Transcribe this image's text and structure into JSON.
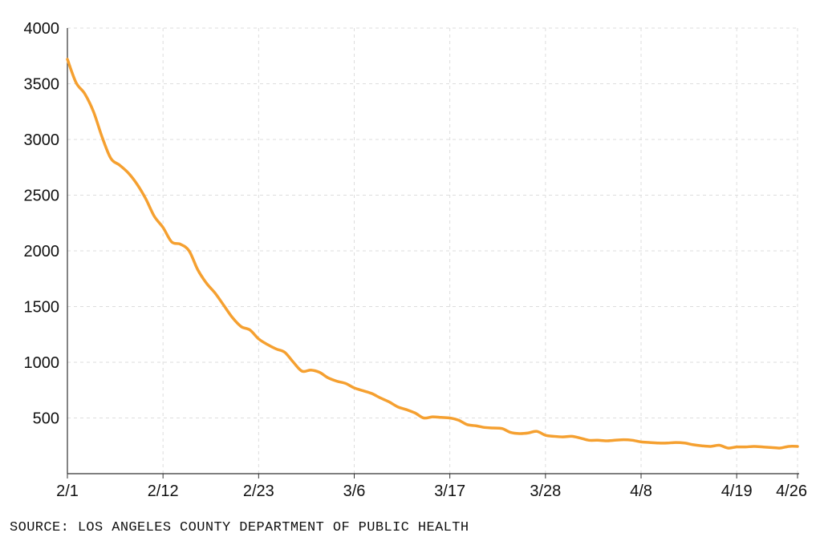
{
  "chart_data": {
    "type": "line",
    "title": "",
    "xlabel": "",
    "ylabel": "",
    "xlim": [
      0,
      84
    ],
    "ylim": [
      0,
      4000
    ],
    "y_ticks": [
      500,
      1000,
      1500,
      2000,
      2500,
      3000,
      3500,
      4000
    ],
    "x_ticks": [
      {
        "label": "2/1",
        "x": 0
      },
      {
        "label": "2/12",
        "x": 11
      },
      {
        "label": "2/23",
        "x": 22
      },
      {
        "label": "3/6",
        "x": 33
      },
      {
        "label": "3/17",
        "x": 44
      },
      {
        "label": "3/28",
        "x": 55
      },
      {
        "label": "4/8",
        "x": 66
      },
      {
        "label": "4/19",
        "x": 77
      },
      {
        "label": "4/26",
        "x": 84
      }
    ],
    "grid": true,
    "series": [
      {
        "color": "#f5a030",
        "points": [
          [
            0,
            3720
          ],
          [
            1,
            3510
          ],
          [
            2,
            3410
          ],
          [
            3,
            3250
          ],
          [
            4,
            3020
          ],
          [
            5,
            2830
          ],
          [
            6,
            2770
          ],
          [
            7,
            2700
          ],
          [
            8,
            2600
          ],
          [
            9,
            2470
          ],
          [
            10,
            2310
          ],
          [
            11,
            2210
          ],
          [
            12,
            2080
          ],
          [
            13,
            2060
          ],
          [
            14,
            2000
          ],
          [
            15,
            1830
          ],
          [
            16,
            1710
          ],
          [
            17,
            1620
          ],
          [
            18,
            1510
          ],
          [
            19,
            1400
          ],
          [
            20,
            1320
          ],
          [
            21,
            1290
          ],
          [
            22,
            1210
          ],
          [
            23,
            1160
          ],
          [
            24,
            1120
          ],
          [
            25,
            1090
          ],
          [
            26,
            1000
          ],
          [
            27,
            920
          ],
          [
            28,
            930
          ],
          [
            29,
            910
          ],
          [
            30,
            860
          ],
          [
            31,
            830
          ],
          [
            32,
            810
          ],
          [
            33,
            770
          ],
          [
            34,
            745
          ],
          [
            35,
            720
          ],
          [
            36,
            680
          ],
          [
            37,
            645
          ],
          [
            38,
            600
          ],
          [
            39,
            575
          ],
          [
            40,
            545
          ],
          [
            41,
            500
          ],
          [
            42,
            510
          ],
          [
            43,
            505
          ],
          [
            44,
            500
          ],
          [
            45,
            480
          ],
          [
            46,
            440
          ],
          [
            47,
            430
          ],
          [
            48,
            415
          ],
          [
            49,
            410
          ],
          [
            50,
            405
          ],
          [
            51,
            370
          ],
          [
            52,
            360
          ],
          [
            53,
            365
          ],
          [
            54,
            380
          ],
          [
            55,
            345
          ],
          [
            56,
            335
          ],
          [
            57,
            330
          ],
          [
            58,
            335
          ],
          [
            59,
            320
          ],
          [
            60,
            300
          ],
          [
            61,
            300
          ],
          [
            62,
            295
          ],
          [
            63,
            300
          ],
          [
            64,
            305
          ],
          [
            65,
            300
          ],
          [
            66,
            285
          ],
          [
            67,
            280
          ],
          [
            68,
            275
          ],
          [
            69,
            275
          ],
          [
            70,
            280
          ],
          [
            71,
            275
          ],
          [
            72,
            260
          ],
          [
            73,
            250
          ],
          [
            74,
            245
          ],
          [
            75,
            255
          ],
          [
            76,
            230
          ],
          [
            77,
            240
          ],
          [
            78,
            240
          ],
          [
            79,
            245
          ],
          [
            80,
            240
          ],
          [
            81,
            235
          ],
          [
            82,
            230
          ],
          [
            83,
            245
          ],
          [
            84,
            245
          ]
        ]
      }
    ]
  },
  "source_note": "SOURCE: LOS ANGELES COUNTY DEPARTMENT OF PUBLIC HEALTH"
}
